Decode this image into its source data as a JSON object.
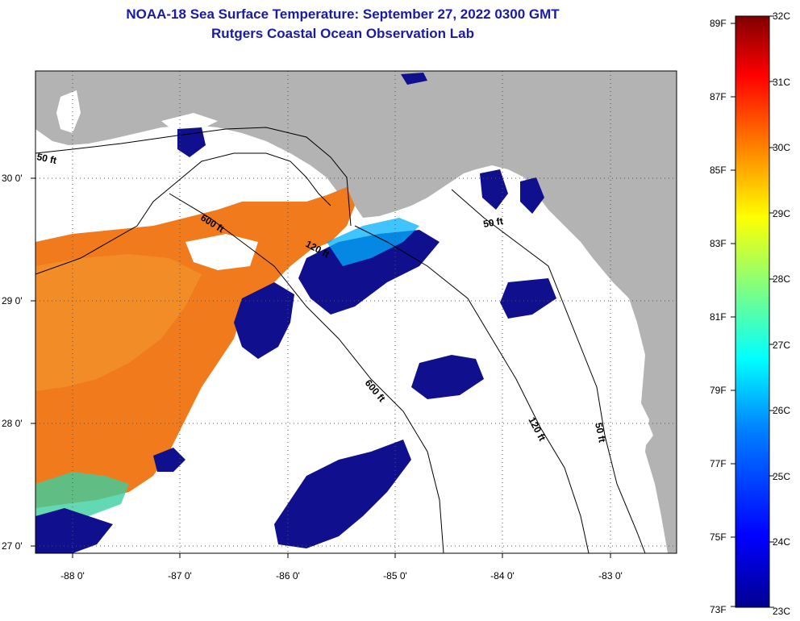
{
  "title_line1": "NOAA-18 Sea Surface Temperature:  September 27, 2022 0300 GMT",
  "title_line2": "Rutgers Coastal Ocean Observation Lab",
  "colors": {
    "land": "#b3b3b3",
    "cloud_mask": "#ffffff",
    "warm_water": "#f07a1c",
    "cool_water": "#10108f",
    "background": "#ffffff"
  },
  "axes": {
    "lon_ticks": [
      "-88 0'",
      "-87 0'",
      "-86 0'",
      "-85 0'",
      "-84 0'",
      "-83 0'"
    ],
    "lat_ticks": [
      "30 0'",
      "29 0'",
      "28 0'",
      "27 0'"
    ],
    "lon_range": [
      -88.35,
      -82.45
    ],
    "lat_range": [
      26.95,
      30.85
    ]
  },
  "contours": [
    {
      "label": "50 ft"
    },
    {
      "label": "600 ft"
    },
    {
      "label": "120 ft"
    },
    {
      "label": "600 ft"
    },
    {
      "label": "120 ft"
    },
    {
      "label": "50 ft"
    },
    {
      "label": "50 ft"
    }
  ],
  "colorbar": {
    "fahrenheit": [
      "89F",
      "87F",
      "85F",
      "83F",
      "81F",
      "79F",
      "77F",
      "75F",
      "73F"
    ],
    "celsius": [
      "32C",
      "31C",
      "30C",
      "29C",
      "28C",
      "27C",
      "26C",
      "25C",
      "24C",
      "23C"
    ],
    "stops": [
      "#00008f",
      "#0000ff",
      "#0080ff",
      "#00ffff",
      "#80ff80",
      "#ffff00",
      "#ff8000",
      "#ff0000",
      "#800000"
    ]
  }
}
